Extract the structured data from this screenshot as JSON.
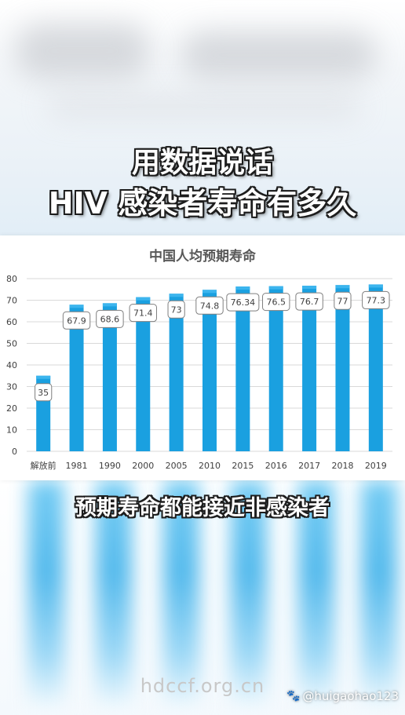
{
  "overlay": {
    "title_line1": "用数据说话",
    "title_line2": "HIV 感染者寿命有多久",
    "caption": "预期寿命都能接近非感染者"
  },
  "watermark": {
    "site": "hdccf.org.cn",
    "user": "@huigaohao123"
  },
  "colors": {
    "bar": "#1aa0e0",
    "bar_cap": "#3cb5ee",
    "grid": "#d9d9d9",
    "title_text": "#595959",
    "axis_text": "#404040",
    "label_border": "#7f7f7f"
  },
  "chart_data": {
    "type": "bar",
    "title": "中国人均预期寿命",
    "categories": [
      "解放前",
      "1981",
      "1990",
      "2000",
      "2005",
      "2010",
      "2015",
      "2016",
      "2017",
      "2018",
      "2019"
    ],
    "values": [
      35,
      67.9,
      68.6,
      71.4,
      73,
      74.8,
      76.34,
      76.5,
      76.7,
      77,
      77.3
    ],
    "value_labels": [
      "35",
      "67.9",
      "68.6",
      "71.4",
      "73",
      "74.8",
      "76.34",
      "76.5",
      "76.7",
      "77",
      "77.3"
    ],
    "ylim": [
      0,
      80
    ],
    "yticks": [
      0,
      10,
      20,
      30,
      40,
      50,
      60,
      70,
      80
    ],
    "xlabel": "",
    "ylabel": "",
    "grid": true,
    "legend": "none"
  }
}
